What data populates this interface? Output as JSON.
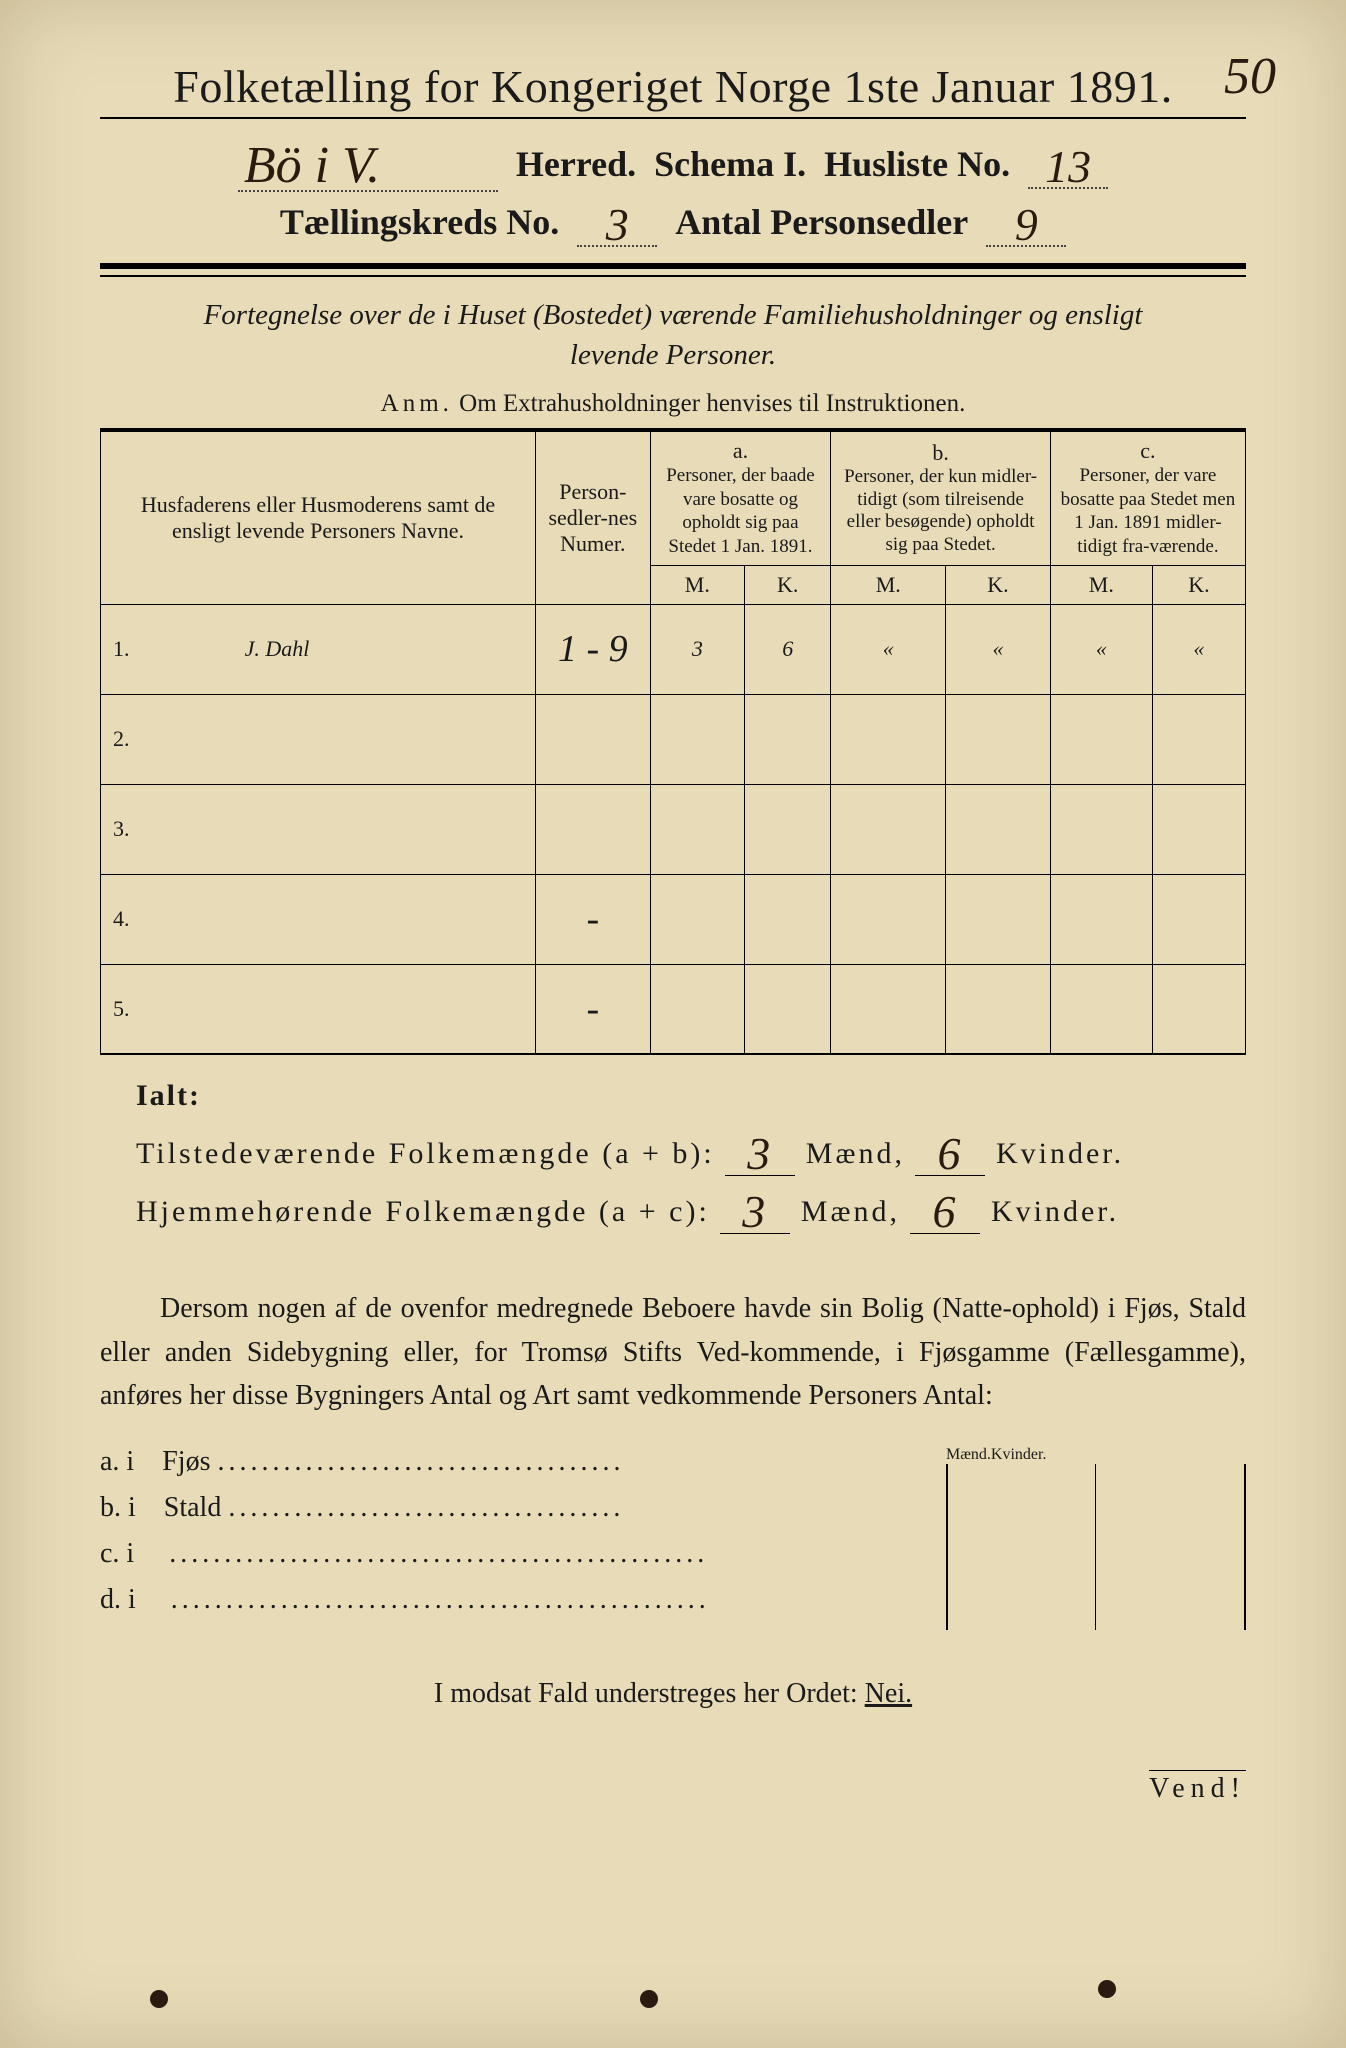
{
  "corner_number": "50",
  "title": "Folketælling for Kongeriget Norge 1ste Januar 1891.",
  "header": {
    "herred_value": "Bö i V.",
    "herred_label": "Herred.",
    "schema_label": "Schema I.",
    "husliste_label": "Husliste No.",
    "husliste_value": "13",
    "kreds_label": "Tællingskreds No.",
    "kreds_value": "3",
    "antal_label": "Antal Personsedler",
    "antal_value": "9"
  },
  "fortegnelse_line1": "Fortegnelse over de i Huset (Bostedet) værende Familiehusholdninger og ensligt",
  "fortegnelse_line2": "levende Personer.",
  "anm_lead": "Anm.",
  "anm_text": "Om Extrahusholdninger henvises til Instruktionen.",
  "table": {
    "col_name": "Husfaderens eller Husmoderens samt de ensligt levende Personers Navne.",
    "col_num": "Person-sedler-nes Numer.",
    "col_a_label": "a.",
    "col_a": "Personer, der baade vare bosatte og opholdt sig paa Stedet 1 Jan. 1891.",
    "col_b_label": "b.",
    "col_b": "Personer, der kun midler-tidigt (som tilreisende eller besøgende) opholdt sig paa Stedet.",
    "col_c_label": "c.",
    "col_c": "Personer, der vare bosatte paa Stedet men 1 Jan. 1891 midler-tidigt fra-værende.",
    "m": "M.",
    "k": "K.",
    "rows": [
      {
        "n": "1.",
        "name": "J. Dahl",
        "num": "1 - 9",
        "am": "3",
        "ak": "6",
        "bm": "«",
        "bk": "«",
        "cm": "«",
        "ck": "«"
      },
      {
        "n": "2.",
        "name": "",
        "num": "",
        "am": "",
        "ak": "",
        "bm": "",
        "bk": "",
        "cm": "",
        "ck": ""
      },
      {
        "n": "3.",
        "name": "",
        "num": "",
        "am": "",
        "ak": "",
        "bm": "",
        "bk": "",
        "cm": "",
        "ck": ""
      },
      {
        "n": "4.",
        "name": "",
        "num": "-",
        "am": "",
        "ak": "",
        "bm": "",
        "bk": "",
        "cm": "",
        "ck": ""
      },
      {
        "n": "5.",
        "name": "",
        "num": "-",
        "am": "",
        "ak": "",
        "bm": "",
        "bk": "",
        "cm": "",
        "ck": ""
      }
    ]
  },
  "totals": {
    "ialt": "Ialt:",
    "line1_label": "Tilstedeværende Folkemængde (a + b):",
    "line1_m": "3",
    "line1_k": "6",
    "line2_label": "Hjemmehørende Folkemængde (a + c):",
    "line2_m": "3",
    "line2_k": "6",
    "maend": "Mænd,",
    "kvinder": "Kvinder."
  },
  "dersom": "Dersom nogen af de ovenfor medregnede Beboere havde sin Bolig (Natte-ophold) i Fjøs, Stald eller anden Sidebygning eller, for Tromsø Stifts Ved-kommende, i Fjøsgamme (Fællesgamme), anføres her disse Bygningers Antal og Art samt vedkommende Personers Antal:",
  "side": {
    "maend": "Mænd.",
    "kvinder": "Kvinder.",
    "rows": [
      {
        "label": "a.  i",
        "text": "Fjøs",
        "dots": "....................................."
      },
      {
        "label": "b.  i",
        "text": "Stald",
        "dots": "...................................."
      },
      {
        "label": "c.  i",
        "text": "",
        "dots": "................................................."
      },
      {
        "label": "d.  i",
        "text": "",
        "dots": "................................................."
      }
    ]
  },
  "modsat_pre": "I modsat Fald understreges her Ordet: ",
  "modsat_word": "Nei.",
  "vend": "Vend!",
  "colors": {
    "paper": "#e8dcb8",
    "ink": "#1a1a10",
    "blue_pencil": "#1a5b7a"
  }
}
